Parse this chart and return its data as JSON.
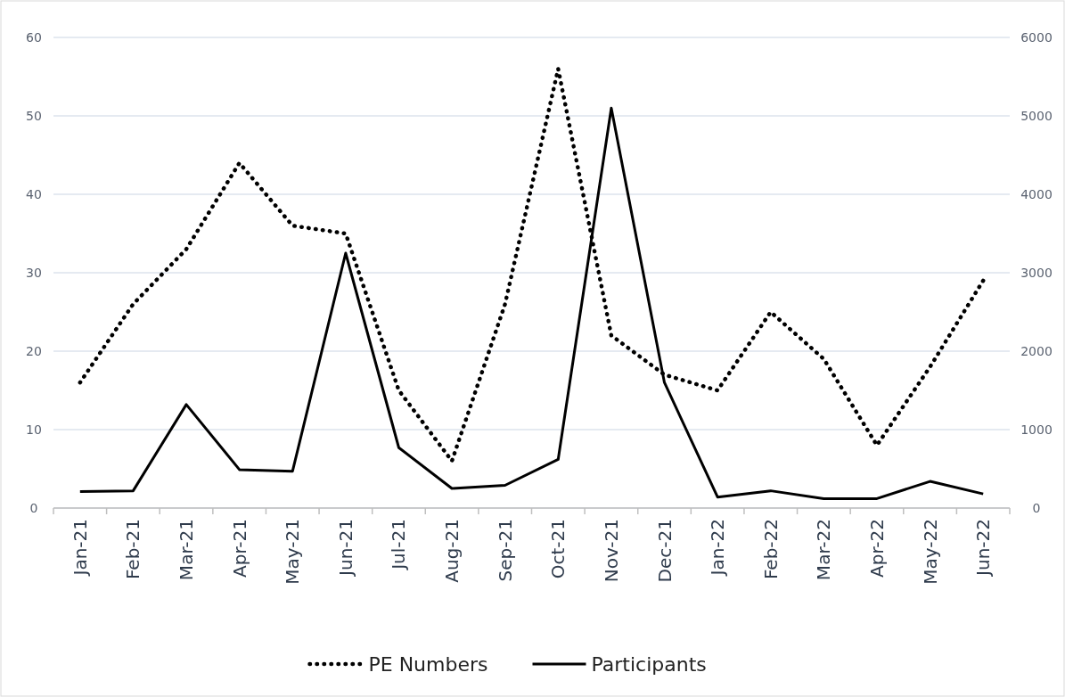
{
  "chart_data": {
    "type": "line",
    "categories": [
      "Jan-21",
      "Feb-21",
      "Mar-21",
      "Apr-21",
      "May-21",
      "Jun-21",
      "Jul-21",
      "Aug-21",
      "Sep-21",
      "Oct-21",
      "Nov-21",
      "Dec-21",
      "Jan-22",
      "Feb-22",
      "Mar-22",
      "Apr-22",
      "May-22",
      "Jun-22"
    ],
    "series": [
      {
        "name": "PE Numbers",
        "color": "#000000",
        "line_style": "dotted",
        "values": [
          16,
          26,
          33,
          44,
          36,
          35,
          15,
          6,
          26,
          56,
          22,
          17,
          15,
          25,
          19,
          8,
          18,
          29
        ]
      },
      {
        "name": "Participants",
        "color": "#000000",
        "line_style": "solid",
        "axis": "y2",
        "values": [
          210,
          220,
          1320,
          490,
          470,
          3250,
          770,
          250,
          290,
          620,
          5100,
          1600,
          140,
          220,
          120,
          120,
          340,
          180
        ]
      }
    ],
    "ylim": [
      0,
      60
    ],
    "yticks": [
      0,
      10,
      20,
      30,
      40,
      50,
      60
    ],
    "y2lim": [
      0,
      6000
    ],
    "y2ticks": [
      0,
      1000,
      2000,
      3000,
      4000,
      5000,
      6000
    ],
    "grid": "y",
    "legend": "bottom"
  }
}
